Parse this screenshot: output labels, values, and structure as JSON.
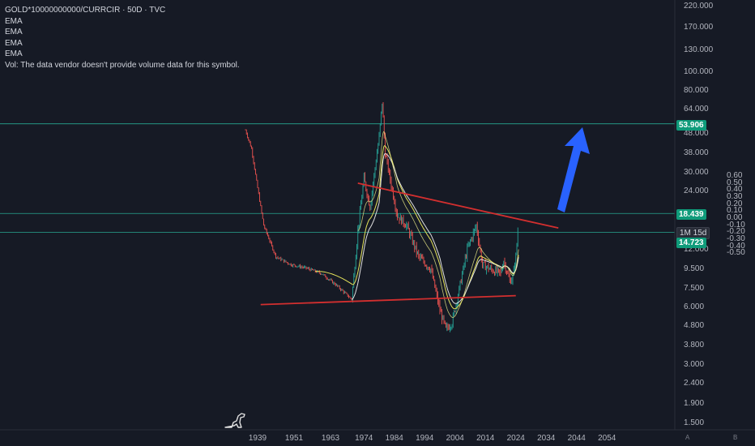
{
  "legend": {
    "symbol": "GOLD*10000000000/CURRCIR · 50D · TVC",
    "ema1": "EMA",
    "ema2": "EMA",
    "ema3": "EMA",
    "ema4": "EMA",
    "vol": "Vol: The data vendor doesn't provide volume data for this symbol."
  },
  "axis_right_labels": [
    "220.000",
    "170.000",
    "130.000",
    "100.000",
    "80.000",
    "64.000",
    "48.000",
    "38.000",
    "30.000",
    "24.000",
    "12.000",
    "9.500",
    "7.500",
    "6.000",
    "4.800",
    "3.800",
    "3.000",
    "2.400",
    "1.900",
    "1.500"
  ],
  "axis_far_labels": [
    "0.60",
    "0.50",
    "0.40",
    "0.30",
    "0.20",
    "0.10",
    "0.00",
    "-0.10",
    "-0.20",
    "-0.30",
    "-0.40",
    "-0.50"
  ],
  "price_tags": {
    "top": "53.906",
    "mid": "18.439",
    "countdown": "1M 15d",
    "last": "14.723"
  },
  "x_labels": [
    "1939",
    "1951",
    "1963",
    "1974",
    "1984",
    "1994",
    "2004",
    "2014",
    "2024",
    "2034",
    "2044",
    "2054"
  ],
  "corner_labels": {
    "a": "A",
    "b": "B"
  },
  "colors": {
    "background": "#161a25",
    "candle_down": "#ef5350",
    "candle_up": "#26a69a",
    "trendline": "#d32f2f",
    "hline": "#2bbfa4",
    "ema_yellow": "#e5e35a",
    "ema_white": "#e0e0e0",
    "arrow": "#2962ff"
  },
  "chart_data": {
    "type": "line",
    "xlabel": "",
    "ylabel": "",
    "scale": "log",
    "ylim": [
      1.5,
      220
    ],
    "x": [
      1935,
      1937,
      1939,
      1941,
      1945,
      1950,
      1955,
      1960,
      1965,
      1970,
      1972,
      1974,
      1976,
      1979,
      1980,
      1981,
      1983,
      1985,
      1988,
      1992,
      1996,
      1999,
      2001,
      2003,
      2005,
      2008,
      2011,
      2013,
      2016,
      2019,
      2020,
      2022,
      2023,
      2024,
      2025
    ],
    "series": [
      {
        "values": [
          50,
          40,
          25,
          16,
          11,
          10,
          9.6,
          9.0,
          7.8,
          6.6,
          15,
          28,
          20,
          46,
          70,
          38,
          26,
          18,
          16,
          11,
          9.5,
          5.8,
          4.6,
          5.0,
          7.0,
          12,
          16,
          10,
          9.4,
          9.0,
          10.5,
          8.2,
          8.6,
          11,
          17.5
        ]
      }
    ],
    "trendlines": [
      {
        "label": "upper",
        "from": [
          1972,
          26.5
        ],
        "to": [
          2038,
          15.5
        ]
      },
      {
        "label": "lower",
        "from": [
          1940,
          6.2
        ],
        "to": [
          2024,
          6.9
        ]
      }
    ],
    "horizontal_levels": [
      53.906,
      18.439,
      14.723
    ]
  }
}
